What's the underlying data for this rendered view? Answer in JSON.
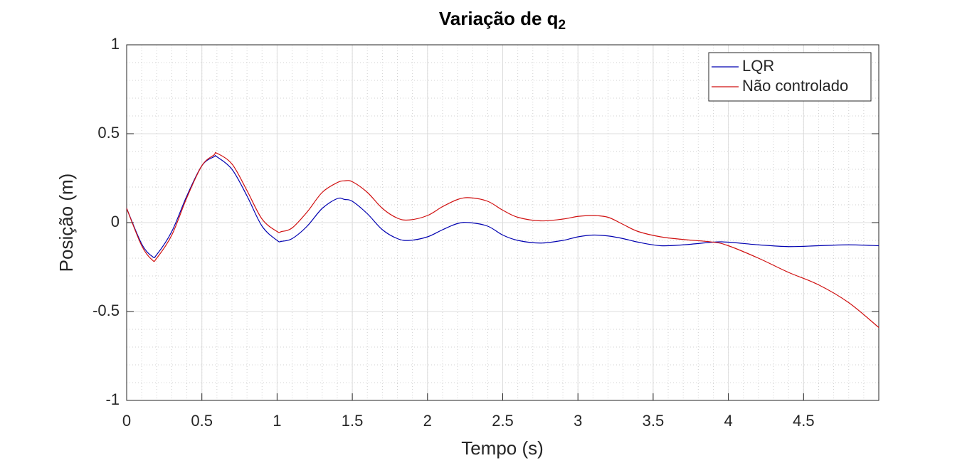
{
  "chart_data": {
    "type": "line",
    "title": "Variação de q",
    "title_subscript": "2",
    "x_label": "Tempo (s)",
    "y_label": "Posição (m)",
    "x": [
      0,
      0.1,
      0.17,
      0.2,
      0.3,
      0.4,
      0.5,
      0.58,
      0.6,
      0.7,
      0.8,
      0.9,
      1.0,
      1.03,
      1.1,
      1.2,
      1.3,
      1.4,
      1.45,
      1.5,
      1.6,
      1.7,
      1.8,
      1.88,
      2.0,
      2.1,
      2.2,
      2.28,
      2.4,
      2.5,
      2.6,
      2.75,
      2.9,
      3.0,
      3.1,
      3.2,
      3.3,
      3.4,
      3.55,
      3.7,
      3.9,
      4.0,
      4.2,
      4.4,
      4.6,
      4.8,
      5.0
    ],
    "series": [
      {
        "name": "LQR",
        "color": "#0000b0",
        "values": [
          0.08,
          -0.12,
          -0.19,
          -0.18,
          -0.05,
          0.15,
          0.32,
          0.37,
          0.37,
          0.3,
          0.15,
          -0.02,
          -0.1,
          -0.105,
          -0.09,
          -0.02,
          0.08,
          0.135,
          0.13,
          0.12,
          0.05,
          -0.04,
          -0.09,
          -0.1,
          -0.08,
          -0.04,
          -0.005,
          0.0,
          -0.02,
          -0.07,
          -0.1,
          -0.115,
          -0.1,
          -0.08,
          -0.07,
          -0.075,
          -0.09,
          -0.11,
          -0.13,
          -0.125,
          -0.11,
          -0.11,
          -0.125,
          -0.135,
          -0.13,
          -0.125,
          -0.13
        ]
      },
      {
        "name": "Não controlado",
        "color": "#d01010",
        "values": [
          0.08,
          -0.13,
          -0.21,
          -0.2,
          -0.07,
          0.14,
          0.32,
          0.38,
          0.39,
          0.33,
          0.18,
          0.02,
          -0.05,
          -0.05,
          -0.03,
          0.06,
          0.17,
          0.225,
          0.235,
          0.23,
          0.17,
          0.08,
          0.025,
          0.015,
          0.04,
          0.09,
          0.13,
          0.14,
          0.12,
          0.07,
          0.03,
          0.01,
          0.02,
          0.035,
          0.04,
          0.03,
          -0.01,
          -0.05,
          -0.08,
          -0.095,
          -0.11,
          -0.13,
          -0.2,
          -0.28,
          -0.35,
          -0.45,
          -0.59
        ]
      }
    ],
    "xlim": [
      0,
      5
    ],
    "xticks": [
      0,
      0.5,
      1,
      1.5,
      2,
      2.5,
      3,
      3.5,
      4,
      4.5
    ],
    "ylim": [
      -1,
      1
    ],
    "yticks": [
      -1,
      -0.5,
      0,
      0.5,
      1
    ],
    "grid": true,
    "minor_grid": true,
    "legend": "top-right"
  }
}
